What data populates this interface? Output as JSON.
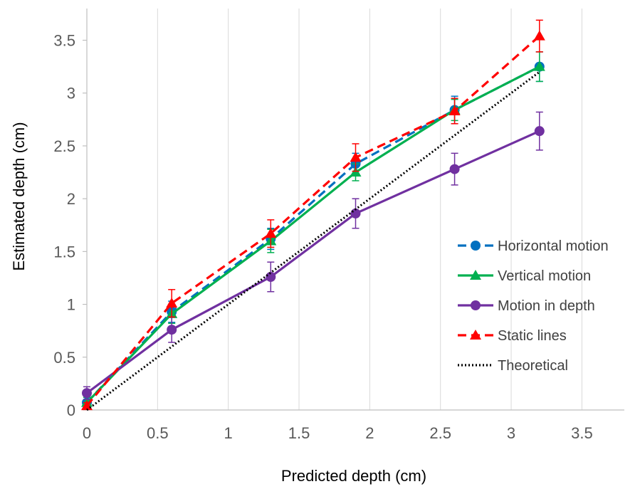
{
  "chart_data": {
    "type": "line",
    "xlabel": "Predicted depth (cm)",
    "ylabel": "Estimated depth (cm)",
    "xlim": [
      0,
      3.8
    ],
    "ylim": [
      0,
      3.8
    ],
    "x_ticks": [
      0,
      0.5,
      1,
      1.5,
      2,
      2.5,
      3,
      3.5
    ],
    "y_ticks": [
      0,
      0.5,
      1,
      1.5,
      2,
      2.5,
      3,
      3.5
    ],
    "x_tick_labels": [
      "0",
      "0.5",
      "1",
      "1.5",
      "2",
      "2.5",
      "3",
      "3.5"
    ],
    "y_tick_labels": [
      "0",
      "0.5",
      "1",
      "1.5",
      "2",
      "2.5",
      "3",
      "3.5"
    ],
    "grid": "vertical",
    "legend_position": "right",
    "series": [
      {
        "name": "Horizontal motion",
        "color": "#0070C0",
        "line_style": "dashed",
        "marker": "circle",
        "x": [
          0,
          0.6,
          1.3,
          1.9,
          2.6,
          3.2
        ],
        "y": [
          0.07,
          0.93,
          1.62,
          2.33,
          2.84,
          3.25
        ],
        "err": [
          0.05,
          0.1,
          0.1,
          0.1,
          0.13,
          0.14
        ]
      },
      {
        "name": "Vertical motion",
        "color": "#00B050",
        "line_style": "solid",
        "marker": "triangle",
        "x": [
          0,
          0.6,
          1.3,
          1.9,
          2.6,
          3.2
        ],
        "y": [
          0.07,
          0.91,
          1.6,
          2.25,
          2.84,
          3.25
        ],
        "err": [
          0.05,
          0.09,
          0.11,
          0.08,
          0.1,
          0.14
        ]
      },
      {
        "name": "Motion in depth",
        "color": "#7030A0",
        "line_style": "solid",
        "marker": "circle",
        "x": [
          0,
          0.6,
          1.3,
          1.9,
          2.6,
          3.2
        ],
        "y": [
          0.16,
          0.76,
          1.26,
          1.86,
          2.28,
          2.64
        ],
        "err": [
          0.06,
          0.12,
          0.14,
          0.14,
          0.15,
          0.18
        ]
      },
      {
        "name": "Static lines",
        "color": "#FF0000",
        "line_style": "dashed",
        "marker": "triangle",
        "x": [
          0,
          0.6,
          1.3,
          1.9,
          2.6,
          3.2
        ],
        "y": [
          0.04,
          1.01,
          1.67,
          2.39,
          2.83,
          3.54
        ],
        "err": [
          0.03,
          0.13,
          0.13,
          0.13,
          0.12,
          0.15
        ]
      },
      {
        "name": "Theoretical",
        "color": "#000000",
        "line_style": "dotted",
        "marker": "none",
        "x": [
          0,
          3.2
        ],
        "y": [
          0,
          3.2
        ],
        "err": []
      }
    ]
  }
}
